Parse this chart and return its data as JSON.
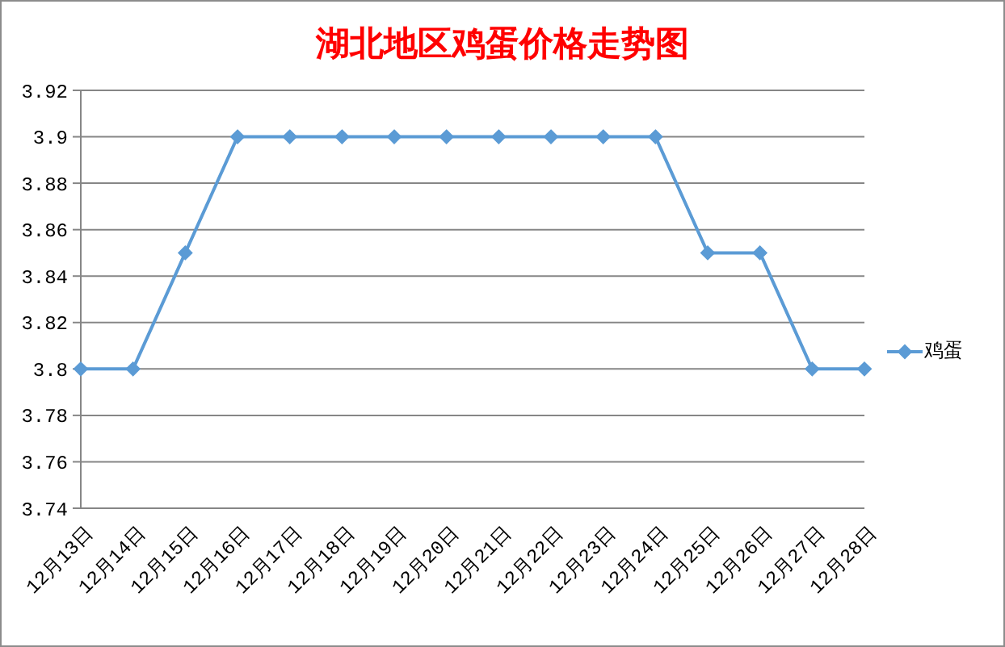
{
  "chart_data": {
    "type": "line",
    "title": "湖北地区鸡蛋价格走势图",
    "categories": [
      "12月13日",
      "12月14日",
      "12月15日",
      "12月16日",
      "12月17日",
      "12月18日",
      "12月19日",
      "12月20日",
      "12月21日",
      "12月22日",
      "12月23日",
      "12月24日",
      "12月25日",
      "12月26日",
      "12月27日",
      "12月28日"
    ],
    "series": [
      {
        "name": "鸡蛋",
        "color": "#5b9bd5",
        "values": [
          3.8,
          3.8,
          3.85,
          3.9,
          3.9,
          3.9,
          3.9,
          3.9,
          3.9,
          3.9,
          3.9,
          3.9,
          3.85,
          3.85,
          3.8,
          3.8
        ]
      }
    ],
    "ylim": [
      3.74,
      3.92
    ],
    "yticks": [
      3.74,
      3.76,
      3.78,
      3.8,
      3.82,
      3.84,
      3.86,
      3.88,
      3.9,
      3.92
    ],
    "grid": "y",
    "legend": "right",
    "marker": "diamond",
    "line_style": "solid"
  }
}
